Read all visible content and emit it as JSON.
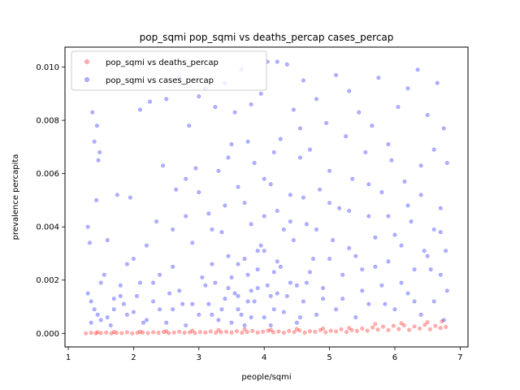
{
  "chart_data": {
    "type": "scatter",
    "title": "pop_sqmi pop_sqmi vs deaths_percap cases_percap",
    "xlabel": "people/sqmi",
    "ylabel": "prevalence percapita",
    "xlim": [
      0.95,
      7.12
    ],
    "ylim": [
      -0.00051,
      0.01075
    ],
    "x_ticks": [
      1,
      2,
      3,
      4,
      5,
      6,
      7
    ],
    "x_tick_labels": [
      "1",
      "2",
      "3",
      "4",
      "5",
      "6",
      "7"
    ],
    "y_ticks": [
      0.0,
      0.002,
      0.004,
      0.006,
      0.008,
      0.01
    ],
    "y_tick_labels": [
      "0.000",
      "0.002",
      "0.004",
      "0.006",
      "0.008",
      "0.010"
    ],
    "grid": false,
    "legend_placement": "upper-left",
    "series": [
      {
        "name": "pop_sqmi vs deaths_percap",
        "color": "#ff0000",
        "alpha": 0.3,
        "points": [
          [
            1.27,
            0.0
          ],
          [
            1.35,
            2e-05
          ],
          [
            1.42,
            0.0
          ],
          [
            1.5,
            1e-05
          ],
          [
            1.58,
            3e-05
          ],
          [
            1.66,
            0.0
          ],
          [
            1.74,
            2e-05
          ],
          [
            1.82,
            1e-05
          ],
          [
            1.9,
            4e-05
          ],
          [
            1.98,
            0.0
          ],
          [
            2.06,
            2e-05
          ],
          [
            2.14,
            3e-05
          ],
          [
            2.22,
            1e-05
          ],
          [
            2.3,
            4e-05
          ],
          [
            2.38,
            2e-05
          ],
          [
            2.46,
            5e-05
          ],
          [
            2.54,
            1e-05
          ],
          [
            2.62,
            3e-05
          ],
          [
            2.7,
            6e-05
          ],
          [
            2.78,
            2e-05
          ],
          [
            2.86,
            4e-05
          ],
          [
            2.94,
            1e-05
          ],
          [
            3.02,
            5e-05
          ],
          [
            3.1,
            3e-05
          ],
          [
            3.18,
            7e-05
          ],
          [
            3.26,
            2e-05
          ],
          [
            3.34,
            4e-05
          ],
          [
            3.42,
            6e-05
          ],
          [
            3.5,
            3e-05
          ],
          [
            3.58,
            8e-05
          ],
          [
            3.66,
            2e-05
          ],
          [
            3.74,
            5e-05
          ],
          [
            3.82,
            9e-05
          ],
          [
            3.9,
            3e-05
          ],
          [
            3.98,
            6e-05
          ],
          [
            4.06,
            0.0001
          ],
          [
            4.14,
            4e-05
          ],
          [
            4.22,
            7e-05
          ],
          [
            4.3,
            2e-05
          ],
          [
            4.38,
            9e-05
          ],
          [
            4.46,
            5e-05
          ],
          [
            4.54,
            0.00011
          ],
          [
            4.62,
            3e-05
          ],
          [
            4.7,
            8e-05
          ],
          [
            4.78,
            6e-05
          ],
          [
            4.86,
            0.00012
          ],
          [
            4.94,
            4e-05
          ],
          [
            5.02,
            0.0001
          ],
          [
            5.1,
            7e-05
          ],
          [
            5.18,
            0.00015
          ],
          [
            5.26,
            5e-05
          ],
          [
            5.34,
            0.00012
          ],
          [
            5.42,
            9e-05
          ],
          [
            5.5,
            0.00018
          ],
          [
            5.58,
            0.0001
          ],
          [
            5.66,
            0.00022
          ],
          [
            5.74,
            0.00014
          ],
          [
            5.82,
            0.00025
          ],
          [
            5.9,
            0.00012
          ],
          [
            5.98,
            0.00028
          ],
          [
            6.06,
            0.00016
          ],
          [
            6.14,
            0.0003
          ],
          [
            6.22,
            0.00013
          ],
          [
            6.3,
            0.00026
          ],
          [
            6.38,
            0.00018
          ],
          [
            6.46,
            0.00032
          ],
          [
            6.54,
            0.00015
          ],
          [
            6.62,
            0.00028
          ],
          [
            6.7,
            0.0002
          ],
          [
            6.78,
            0.00024
          ],
          [
            3.3,
            0.00012
          ],
          [
            3.7,
            0.00015
          ],
          [
            4.1,
            0.00013
          ],
          [
            4.5,
            0.00016
          ],
          [
            4.9,
            0.00018
          ],
          [
            5.3,
            0.0002
          ],
          [
            5.7,
            0.00035
          ],
          [
            6.1,
            0.00038
          ],
          [
            6.5,
            0.00042
          ],
          [
            6.72,
            0.00045
          ],
          [
            2.9,
            0.0001
          ],
          [
            2.5,
            8e-05
          ],
          [
            2.1,
            6e-05
          ],
          [
            1.7,
            5e-05
          ],
          [
            1.45,
            4e-05
          ]
        ]
      },
      {
        "name": "pop_sqmi vs cases_percap",
        "color": "#0000ff",
        "alpha": 0.3,
        "points": [
          [
            1.3,
            0.004
          ],
          [
            1.33,
            0.0034
          ],
          [
            1.37,
            0.0083
          ],
          [
            1.4,
            0.0072
          ],
          [
            1.44,
            0.0078
          ],
          [
            1.46,
            0.0065
          ],
          [
            1.48,
            0.0068
          ],
          [
            1.43,
            0.005
          ],
          [
            1.3,
            0.0015
          ],
          [
            1.35,
            0.0012
          ],
          [
            1.4,
            0.0009
          ],
          [
            1.45,
            0.0007
          ],
          [
            1.5,
            0.0005
          ],
          [
            1.55,
            0.0022
          ],
          [
            1.6,
            0.0035
          ],
          [
            1.65,
            0.0003
          ],
          [
            1.7,
            0.0009
          ],
          [
            1.75,
            0.0052
          ],
          [
            1.8,
            0.0018
          ],
          [
            1.85,
            0.0011
          ],
          [
            1.9,
            0.0007
          ],
          [
            1.95,
            0.0051
          ],
          [
            2.0,
            0.0028
          ],
          [
            2.05,
            0.0014
          ],
          [
            2.1,
            0.0084
          ],
          [
            2.15,
            0.0004
          ],
          [
            2.2,
            0.0033
          ],
          [
            2.25,
            0.0087
          ],
          [
            2.3,
            0.0019
          ],
          [
            2.35,
            0.0042
          ],
          [
            2.4,
            0.0009
          ],
          [
            2.45,
            0.0063
          ],
          [
            2.5,
            0.0088
          ],
          [
            2.55,
            0.0015
          ],
          [
            2.6,
            0.0025
          ],
          [
            2.65,
            0.0054
          ],
          [
            2.7,
            0.0096
          ],
          [
            2.75,
            0.0011
          ],
          [
            2.8,
            0.0058
          ],
          [
            2.85,
            0.0078
          ],
          [
            2.9,
            0.0034
          ],
          [
            2.95,
            0.0062
          ],
          [
            3.0,
            0.0089
          ],
          [
            3.05,
            0.0021
          ],
          [
            3.1,
            0.0092
          ],
          [
            3.15,
            0.0045
          ],
          [
            3.2,
            0.0007
          ],
          [
            3.25,
            0.0085
          ],
          [
            3.3,
            0.0061
          ],
          [
            3.35,
            0.0038
          ],
          [
            3.4,
            0.0094
          ],
          [
            3.45,
            0.0017
          ],
          [
            3.5,
            0.0071
          ],
          [
            3.55,
            0.0083
          ],
          [
            3.6,
            0.0026
          ],
          [
            3.65,
            0.0099
          ],
          [
            3.7,
            0.0049
          ],
          [
            3.75,
            0.0012
          ],
          [
            3.8,
            0.0086
          ],
          [
            3.85,
            0.0064
          ],
          [
            3.9,
            0.0031
          ],
          [
            3.95,
            0.009
          ],
          [
            4.0,
            0.0044
          ],
          [
            4.05,
            0.0102
          ],
          [
            4.1,
            0.0056
          ],
          [
            4.15,
            0.0023
          ],
          [
            4.2,
            0.0102
          ],
          [
            4.25,
            0.0073
          ],
          [
            4.3,
            0.0039
          ],
          [
            4.35,
            0.0101
          ],
          [
            4.4,
            0.0052
          ],
          [
            4.45,
            0.0084
          ],
          [
            4.5,
            0.0018
          ],
          [
            4.55,
            0.0066
          ],
          [
            4.6,
            0.0095
          ],
          [
            4.65,
            0.0041
          ],
          [
            4.7,
            0.0069
          ],
          [
            4.75,
            0.0028
          ],
          [
            4.8,
            0.0088
          ],
          [
            4.85,
            0.0054
          ],
          [
            4.9,
            0.0013
          ],
          [
            4.95,
            0.0079
          ],
          [
            5.0,
            0.0061
          ],
          [
            5.05,
            0.0035
          ],
          [
            5.1,
            0.0097
          ],
          [
            5.15,
            0.0047
          ],
          [
            5.2,
            0.0022
          ],
          [
            5.25,
            0.0074
          ],
          [
            5.3,
            0.0091
          ],
          [
            5.35,
            0.0058
          ],
          [
            5.4,
            0.0029
          ],
          [
            5.45,
            0.0083
          ],
          [
            5.5,
            0.0016
          ],
          [
            5.55,
            0.0068
          ],
          [
            5.6,
            0.0044
          ],
          [
            5.65,
            0.0078
          ],
          [
            5.7,
            0.0025
          ],
          [
            5.75,
            0.0096
          ],
          [
            5.8,
            0.0053
          ],
          [
            5.85,
            0.0011
          ],
          [
            5.9,
            0.0071
          ],
          [
            5.95,
            0.0065
          ],
          [
            6.0,
            0.0037
          ],
          [
            6.05,
            0.0085
          ],
          [
            6.1,
            0.0019
          ],
          [
            6.15,
            0.0057
          ],
          [
            6.2,
            0.0092
          ],
          [
            6.25,
            0.0042
          ],
          [
            6.3,
            0.0012
          ],
          [
            6.35,
            0.0099
          ],
          [
            6.4,
            0.0063
          ],
          [
            6.45,
            0.0031
          ],
          [
            6.5,
            0.0082
          ],
          [
            6.55,
            0.0024
          ],
          [
            6.6,
            0.0069
          ],
          [
            6.65,
            0.0094
          ],
          [
            6.7,
            0.0038
          ],
          [
            6.75,
            0.0077
          ],
          [
            6.8,
            0.0016
          ],
          [
            6.8,
            0.0064
          ],
          [
            2.2,
            0.0005
          ],
          [
            2.3,
            0.0012
          ],
          [
            2.4,
            0.0022
          ],
          [
            2.5,
            0.0004
          ],
          [
            2.6,
            0.0009
          ],
          [
            2.7,
            0.0016
          ],
          [
            2.8,
            0.0003
          ],
          [
            2.9,
            0.0011
          ],
          [
            3.0,
            0.0007
          ],
          [
            3.1,
            0.0018
          ],
          [
            3.2,
            0.0026
          ],
          [
            3.3,
            0.0005
          ],
          [
            3.4,
            0.0013
          ],
          [
            3.5,
            0.0021
          ],
          [
            3.6,
            0.0009
          ],
          [
            3.7,
            0.0003
          ],
          [
            3.8,
            0.0016
          ],
          [
            3.9,
            0.0024
          ],
          [
            4.0,
            0.0006
          ],
          [
            4.1,
            0.0014
          ],
          [
            4.2,
            0.0027
          ],
          [
            4.3,
            0.0008
          ],
          [
            4.4,
            0.0019
          ],
          [
            4.5,
            0.0004
          ],
          [
            4.6,
            0.0012
          ],
          [
            4.7,
            0.0023
          ],
          [
            4.8,
            0.0007
          ],
          [
            4.9,
            0.0017
          ],
          [
            5.0,
            0.0028
          ],
          [
            5.1,
            0.0009
          ],
          [
            5.2,
            0.0013
          ],
          [
            5.3,
            0.0032
          ],
          [
            5.4,
            0.0006
          ],
          [
            5.5,
            0.0024
          ],
          [
            5.6,
            0.0011
          ],
          [
            5.7,
            0.0036
          ],
          [
            5.8,
            0.0018
          ],
          [
            5.9,
            0.0027
          ],
          [
            6.0,
            0.0009
          ],
          [
            6.1,
            0.0033
          ],
          [
            6.2,
            0.0015
          ],
          [
            6.3,
            0.0024
          ],
          [
            6.4,
            0.0007
          ],
          [
            6.5,
            0.0029
          ],
          [
            6.6,
            0.0012
          ],
          [
            6.7,
            0.0022
          ],
          [
            6.75,
            0.0005
          ],
          [
            6.78,
            0.0031
          ],
          [
            3.15,
            0.0011
          ],
          [
            3.25,
            0.0019
          ],
          [
            3.35,
            0.0009
          ],
          [
            3.45,
            0.0029
          ],
          [
            3.55,
            0.0015
          ],
          [
            3.65,
            0.0007
          ],
          [
            3.75,
            0.0022
          ],
          [
            3.85,
            0.0012
          ],
          [
            3.95,
            0.0033
          ],
          [
            4.05,
            0.0018
          ],
          [
            4.15,
            0.0009
          ],
          [
            4.25,
            0.0025
          ],
          [
            4.35,
            0.0014
          ],
          [
            4.45,
            0.0035
          ],
          [
            4.55,
            0.0006
          ],
          [
            4.65,
            0.0019
          ],
          [
            3.5,
            0.0004
          ],
          [
            3.6,
            0.0014
          ],
          [
            3.7,
            0.0028
          ],
          [
            3.8,
            0.0006
          ],
          [
            3.9,
            0.0017
          ],
          [
            4.0,
            0.0031
          ],
          [
            4.1,
            0.0003
          ],
          [
            4.2,
            0.0015
          ],
          [
            1.6,
            0.0006
          ],
          [
            1.8,
            0.0014
          ],
          [
            2.0,
            0.0008
          ],
          [
            2.1,
            0.0019
          ],
          [
            1.9,
            0.0026
          ],
          [
            1.7,
            0.0013
          ],
          [
            1.5,
            0.0019
          ],
          [
            1.35,
            0.0004
          ],
          [
            5.6,
            0.0056
          ],
          [
            5.9,
            0.0044
          ],
          [
            6.2,
            0.0048
          ],
          [
            6.4,
            0.0052
          ],
          [
            6.6,
            0.0039
          ],
          [
            6.7,
            0.0047
          ],
          [
            5.3,
            0.0046
          ],
          [
            5.0,
            0.0049
          ],
          [
            4.8,
            0.0039
          ],
          [
            4.6,
            0.0051
          ],
          [
            4.4,
            0.0042
          ],
          [
            4.2,
            0.0046
          ],
          [
            4.0,
            0.0058
          ],
          [
            3.8,
            0.0041
          ],
          [
            3.6,
            0.0055
          ],
          [
            3.4,
            0.0048
          ],
          [
            3.2,
            0.0039
          ],
          [
            3.0,
            0.0053
          ],
          [
            2.8,
            0.0044
          ],
          [
            2.6,
            0.0039
          ],
          [
            3.45,
            0.0066
          ],
          [
            3.75,
            0.0072
          ],
          [
            4.15,
            0.0068
          ],
          [
            4.55,
            0.0077
          ]
        ]
      }
    ]
  }
}
